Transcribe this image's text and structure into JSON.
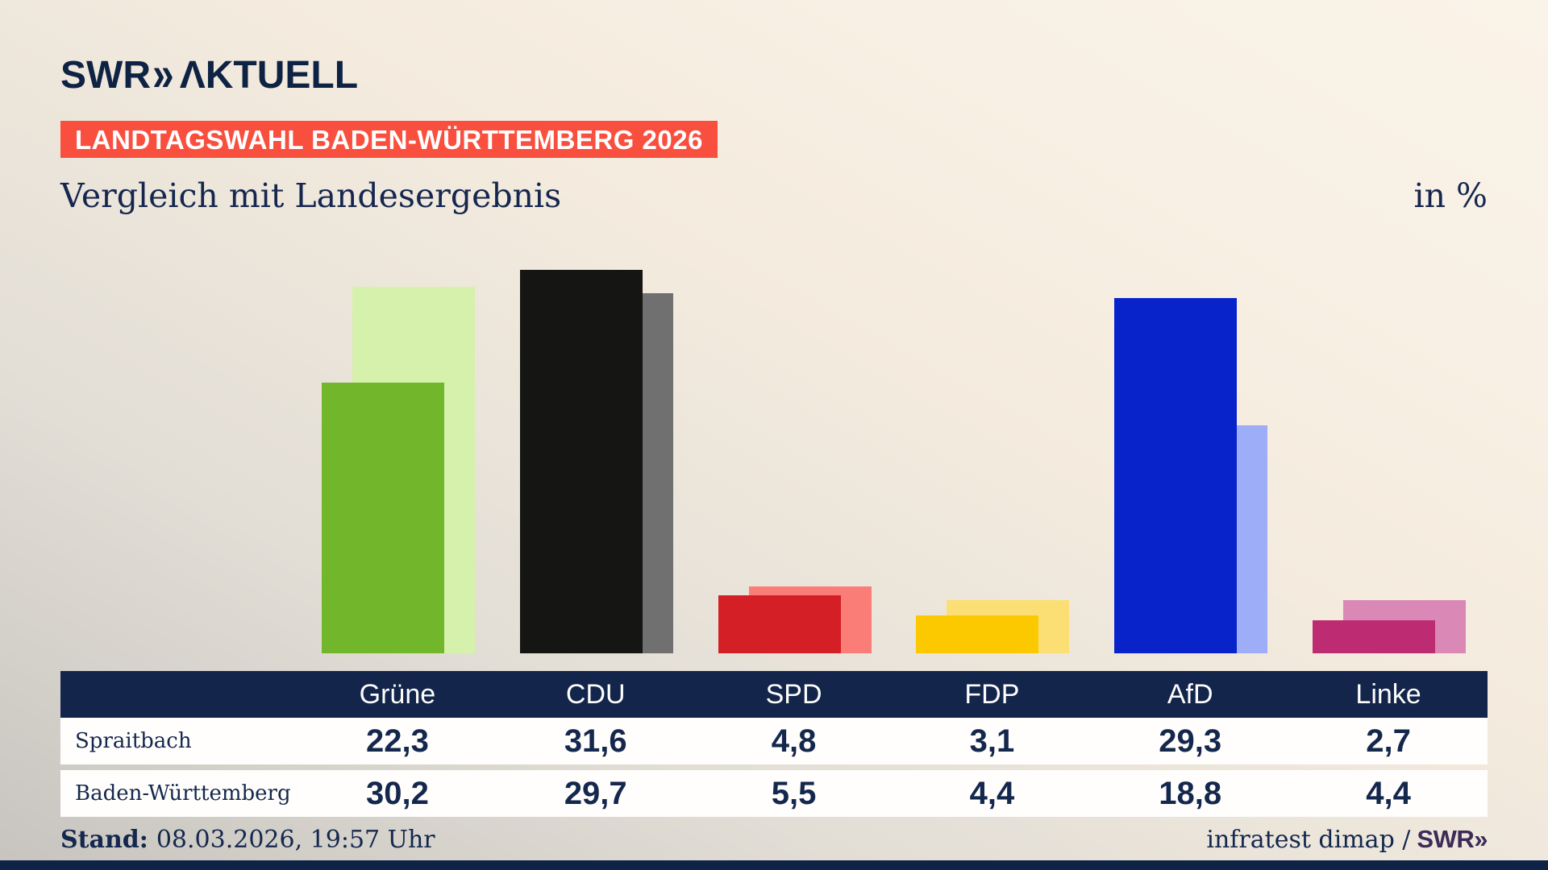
{
  "header": {
    "logo_brand": "SWR",
    "logo_chevrons": "»",
    "logo_suffix": "ΛKTUELL",
    "badge": "LANDTAGSWAHL BADEN-WÜRTTEMBERG 2026",
    "title": "Vergleich mit Landesergebnis",
    "unit_label": "in %"
  },
  "chart_data": {
    "type": "bar",
    "title": "Vergleich mit Landesergebnis",
    "unit": "%",
    "categories": [
      "Grüne",
      "CDU",
      "SPD",
      "FDP",
      "AfD",
      "Linke"
    ],
    "series": [
      {
        "name": "Spraitbach",
        "values": [
          22.3,
          31.6,
          4.8,
          3.1,
          29.3,
          2.7
        ]
      },
      {
        "name": "Baden-Württemberg",
        "values": [
          30.2,
          29.7,
          5.5,
          4.4,
          18.8,
          4.4
        ]
      }
    ],
    "series_colors": {
      "spraitbach_main": [
        "#72b62c",
        "#151513",
        "#d51f26",
        "#fcc900",
        "#0823c9",
        "#bd2b72"
      ],
      "baden_wuerttemberg_light": [
        "#d5f1ab",
        "#707070",
        "#fa7e77",
        "#fbdf74",
        "#9dadf8",
        "#da88b5"
      ]
    },
    "ylim": [
      0,
      33
    ],
    "grid": false,
    "legend_position": "none",
    "value_axis_hidden": true
  },
  "table": {
    "columns": [
      "Grüne",
      "CDU",
      "SPD",
      "FDP",
      "AfD",
      "Linke"
    ],
    "header_bg": "#13254a",
    "rows": [
      {
        "label": "Spraitbach",
        "values": [
          "22,3",
          "31,6",
          "4,8",
          "3,1",
          "29,3",
          "2,7"
        ]
      },
      {
        "label": "Baden-Württemberg",
        "values": [
          "30,2",
          "29,7",
          "5,5",
          "4,4",
          "18,8",
          "4,4"
        ]
      }
    ]
  },
  "footer": {
    "stand_label": "Stand:",
    "stand_value": "08.03.2026, 19:57 Uhr",
    "source_text": "infratest dimap /",
    "source_brand": "SWR»"
  },
  "colors": {
    "accent_red": "#f94f3e",
    "navy_text": "#14274d",
    "navy_bar": "#13254a",
    "brand_purple": "#3d2b57",
    "background_cream": "#f8f0e4",
    "background_gray": "#c7c4bf"
  }
}
